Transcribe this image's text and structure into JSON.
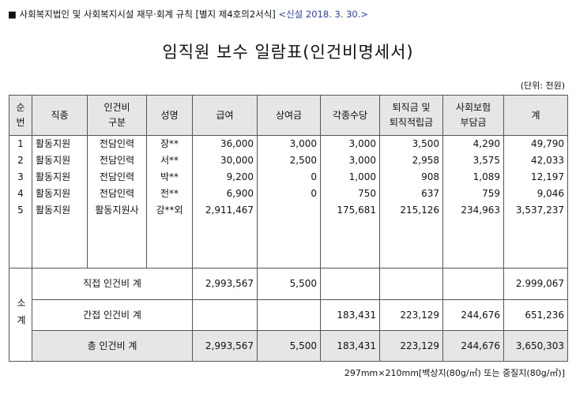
{
  "header": {
    "form_note": "■ 사회복지법인 및 사회복지시설 재무·회계 규칙 [별지 제4호의2서식]",
    "revision": "<신설 2018. 3. 30.>",
    "title": "임직원 보수 일람표(인건비명세서)",
    "unit": "(단위: 천원)"
  },
  "table": {
    "columns": [
      "순\n번",
      "직종",
      "인건비\n구분",
      "성명",
      "급여",
      "상여금",
      "각종수당",
      "퇴직금 및\n퇴직적립금",
      "사회보험\n부담금",
      "계"
    ],
    "rows": [
      [
        "1",
        "활동지원",
        "전담인력",
        "장**",
        "36,000",
        "3,000",
        "3,000",
        "3,500",
        "4,290",
        "49,790"
      ],
      [
        "2",
        "활동지원",
        "전담인력",
        "서**",
        "30,000",
        "2,500",
        "3,000",
        "2,958",
        "3,575",
        "42,033"
      ],
      [
        "3",
        "활동지원",
        "전담인력",
        "박**",
        "9,200",
        "0",
        "1,000",
        "908",
        "1,089",
        "12,197"
      ],
      [
        "4",
        "활동지원",
        "전담인력",
        "전**",
        "6,900",
        "0",
        "750",
        "637",
        "759",
        "9,046"
      ],
      [
        "5",
        "활동지원",
        "활동지원사",
        "강**외",
        "2,911,467",
        null,
        "175,681",
        "215,126",
        "234,963",
        "3,537,237"
      ]
    ],
    "subtotal_label": "소계",
    "subtotals": [
      {
        "label": "직접 인건비 계",
        "values": [
          "2,993,567",
          "5,500",
          null,
          null,
          null,
          "2.999,067"
        ]
      },
      {
        "label": "간접 인건비 계",
        "values": [
          null,
          null,
          "183,431",
          "223,129",
          "244,676",
          "651,236"
        ]
      },
      {
        "label": "총 인건비 계",
        "values": [
          "2,993,567",
          "5,500",
          "183,431",
          "223,129",
          "244,676",
          "3,650,303"
        ]
      }
    ]
  },
  "footer": "297mm×210mm[백상지(80g/㎡) 또는 중질지(80g/㎡)]"
}
